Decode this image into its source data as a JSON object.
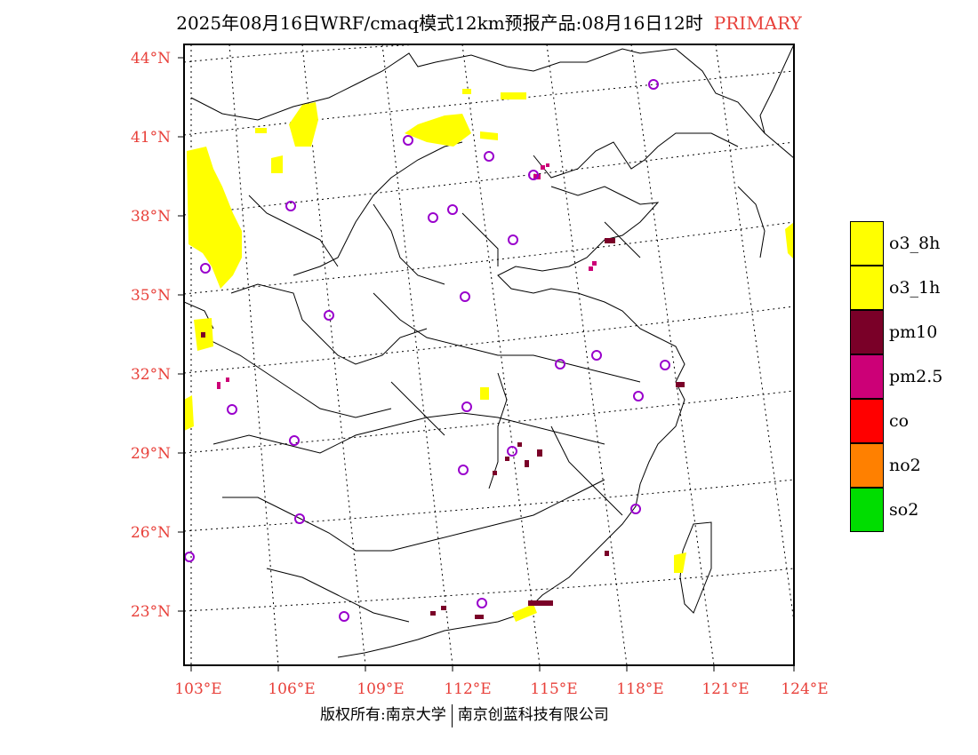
{
  "title": {
    "text": "2025年08月16日WRF/cmaq模式12km预报产品:08月16日12时",
    "tag": "PRIMARY"
  },
  "credit": {
    "left": "版权所有:南京大学",
    "right": "南京创蓝科技有限公司"
  },
  "axes": {
    "lon_ticks": [
      "103°E",
      "106°E",
      "109°E",
      "112°E",
      "115°E",
      "118°E",
      "121°E",
      "124°E"
    ],
    "lat_ticks": [
      "44°N",
      "41°N",
      "38°N",
      "35°N",
      "32°N",
      "29°N",
      "26°N",
      "23°N"
    ]
  },
  "legend": [
    {
      "label": "o3_8h",
      "color": "#ffff00"
    },
    {
      "label": "o3_1h",
      "color": "#ffff00"
    },
    {
      "label": "pm10",
      "color": "#7a0028"
    },
    {
      "label": "pm2.5",
      "color": "#cc0077"
    },
    {
      "label": "co",
      "color": "#ff0000"
    },
    {
      "label": "no2",
      "color": "#ff8000"
    },
    {
      "label": "so2",
      "color": "#00dd00"
    }
  ],
  "colors": {
    "tick_label": "#e8403a",
    "station_marker": "#9900cc",
    "o3": "#ffff00",
    "pm10": "#7a0028",
    "pm25": "#cc0077"
  }
}
